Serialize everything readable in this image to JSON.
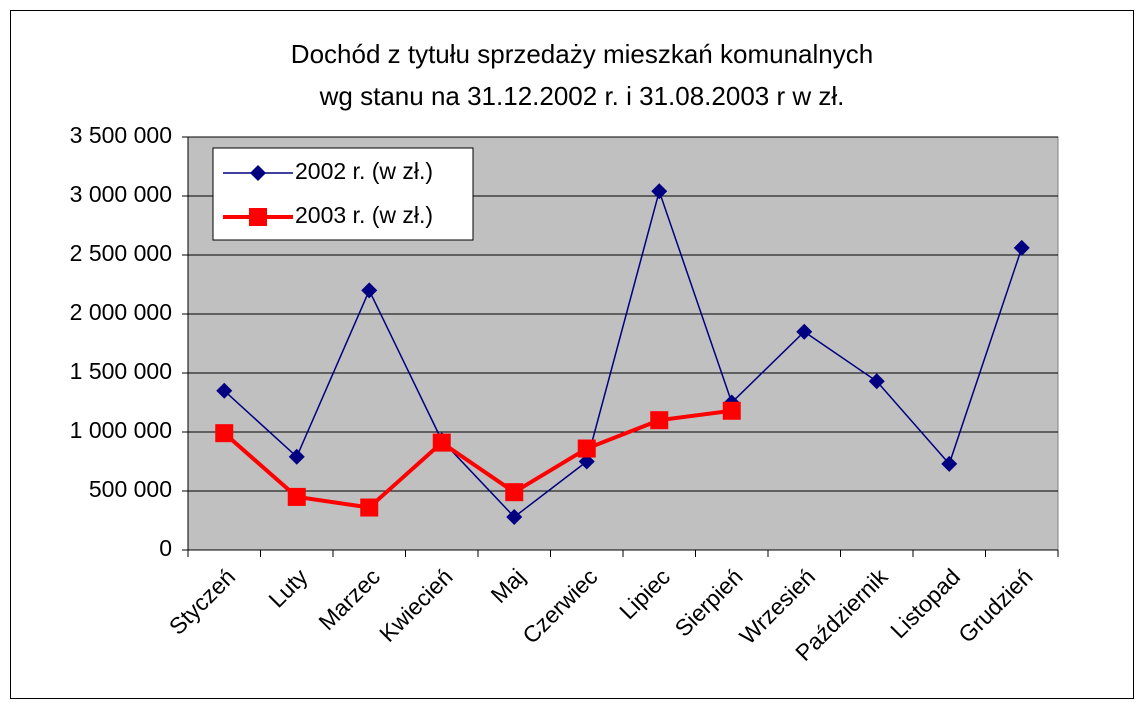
{
  "chart_data": {
    "type": "line",
    "title": [
      "Dochód z tytułu sprzedaży mieszkań komunalnych",
      "wg stanu na 31.12.2002 r. i 31.08.2003 r w zł."
    ],
    "categories": [
      "Styczeń",
      "Luty",
      "Marzec",
      "Kwiecień",
      "Maj",
      "Czerwiec",
      "Lipiec",
      "Sierpień",
      "Wrzesień",
      "Październik",
      "Listopad",
      "Grudzień"
    ],
    "series": [
      {
        "name": "2002 r. (w zł.)",
        "color": "#000080",
        "marker": "diamond",
        "values": [
          1350000,
          790000,
          2200000,
          930000,
          280000,
          750000,
          3040000,
          1250000,
          1850000,
          1430000,
          730000,
          2560000
        ]
      },
      {
        "name": "2003 r. (w zł.)",
        "color": "#ff0000",
        "marker": "square",
        "values": [
          990000,
          450000,
          360000,
          910000,
          490000,
          860000,
          1100000,
          1180000,
          null,
          null,
          null,
          null
        ]
      }
    ],
    "ylim": [
      0,
      3500000
    ],
    "yticks": [
      0,
      {
        "value": 500000,
        "label": "500 000"
      },
      {
        "value": 1000000,
        "label": "1 000 000"
      },
      {
        "value": 1500000,
        "label": "1 500 000"
      },
      {
        "value": 2000000,
        "label": "2 000 000"
      },
      {
        "value": 2500000,
        "label": "2 500 000"
      },
      {
        "value": 3000000,
        "label": "3 000 000"
      },
      {
        "value": 3500000,
        "label": "3 500 000"
      }
    ],
    "grid": true,
    "legend": "top-left",
    "plot_background": "#c0c0c0"
  }
}
